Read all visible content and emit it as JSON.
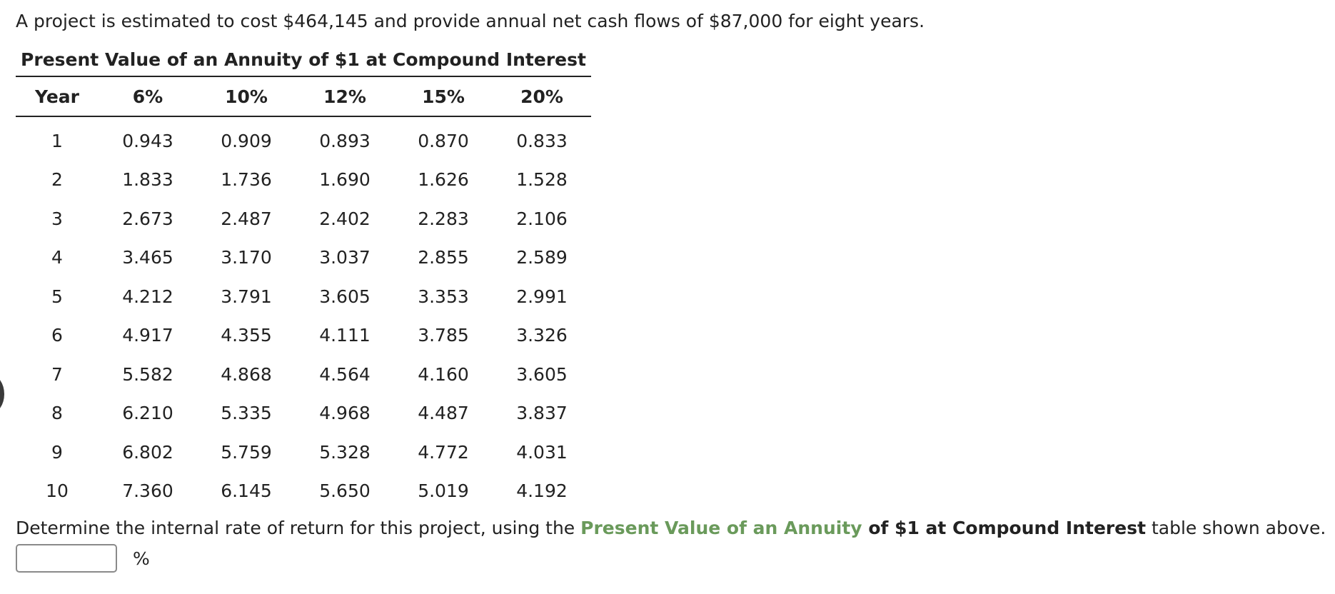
{
  "intro_text": "A project is estimated to cost $464,145 and provide annual net cash flows of $87,000 for eight years.",
  "table": {
    "title": "Present Value of an Annuity of $1 at Compound Interest",
    "headers": [
      "Year",
      "6%",
      "10%",
      "12%",
      "15%",
      "20%"
    ],
    "rows": [
      [
        "1",
        "0.943",
        "0.909",
        "0.893",
        "0.870",
        "0.833"
      ],
      [
        "2",
        "1.833",
        "1.736",
        "1.690",
        "1.626",
        "1.528"
      ],
      [
        "3",
        "2.673",
        "2.487",
        "2.402",
        "2.283",
        "2.106"
      ],
      [
        "4",
        "3.465",
        "3.170",
        "3.037",
        "2.855",
        "2.589"
      ],
      [
        "5",
        "4.212",
        "3.791",
        "3.605",
        "3.353",
        "2.991"
      ],
      [
        "6",
        "4.917",
        "4.355",
        "4.111",
        "3.785",
        "3.326"
      ],
      [
        "7",
        "5.582",
        "4.868",
        "4.564",
        "4.160",
        "3.605"
      ],
      [
        "8",
        "6.210",
        "5.335",
        "4.968",
        "4.487",
        "3.837"
      ],
      [
        "9",
        "6.802",
        "5.759",
        "5.328",
        "4.772",
        "4.031"
      ],
      [
        "10",
        "7.360",
        "6.145",
        "5.650",
        "5.019",
        "4.192"
      ]
    ]
  },
  "question": {
    "prefix": "Determine the internal rate of return for this project, using the ",
    "link_text": "Present Value of an Annuity",
    "bold_text": " of $1 at Compound Interest",
    "suffix": " table shown above."
  },
  "answer": {
    "value": "",
    "unit": "%"
  },
  "colors": {
    "link": "#6a9a5b",
    "text": "#222222"
  }
}
